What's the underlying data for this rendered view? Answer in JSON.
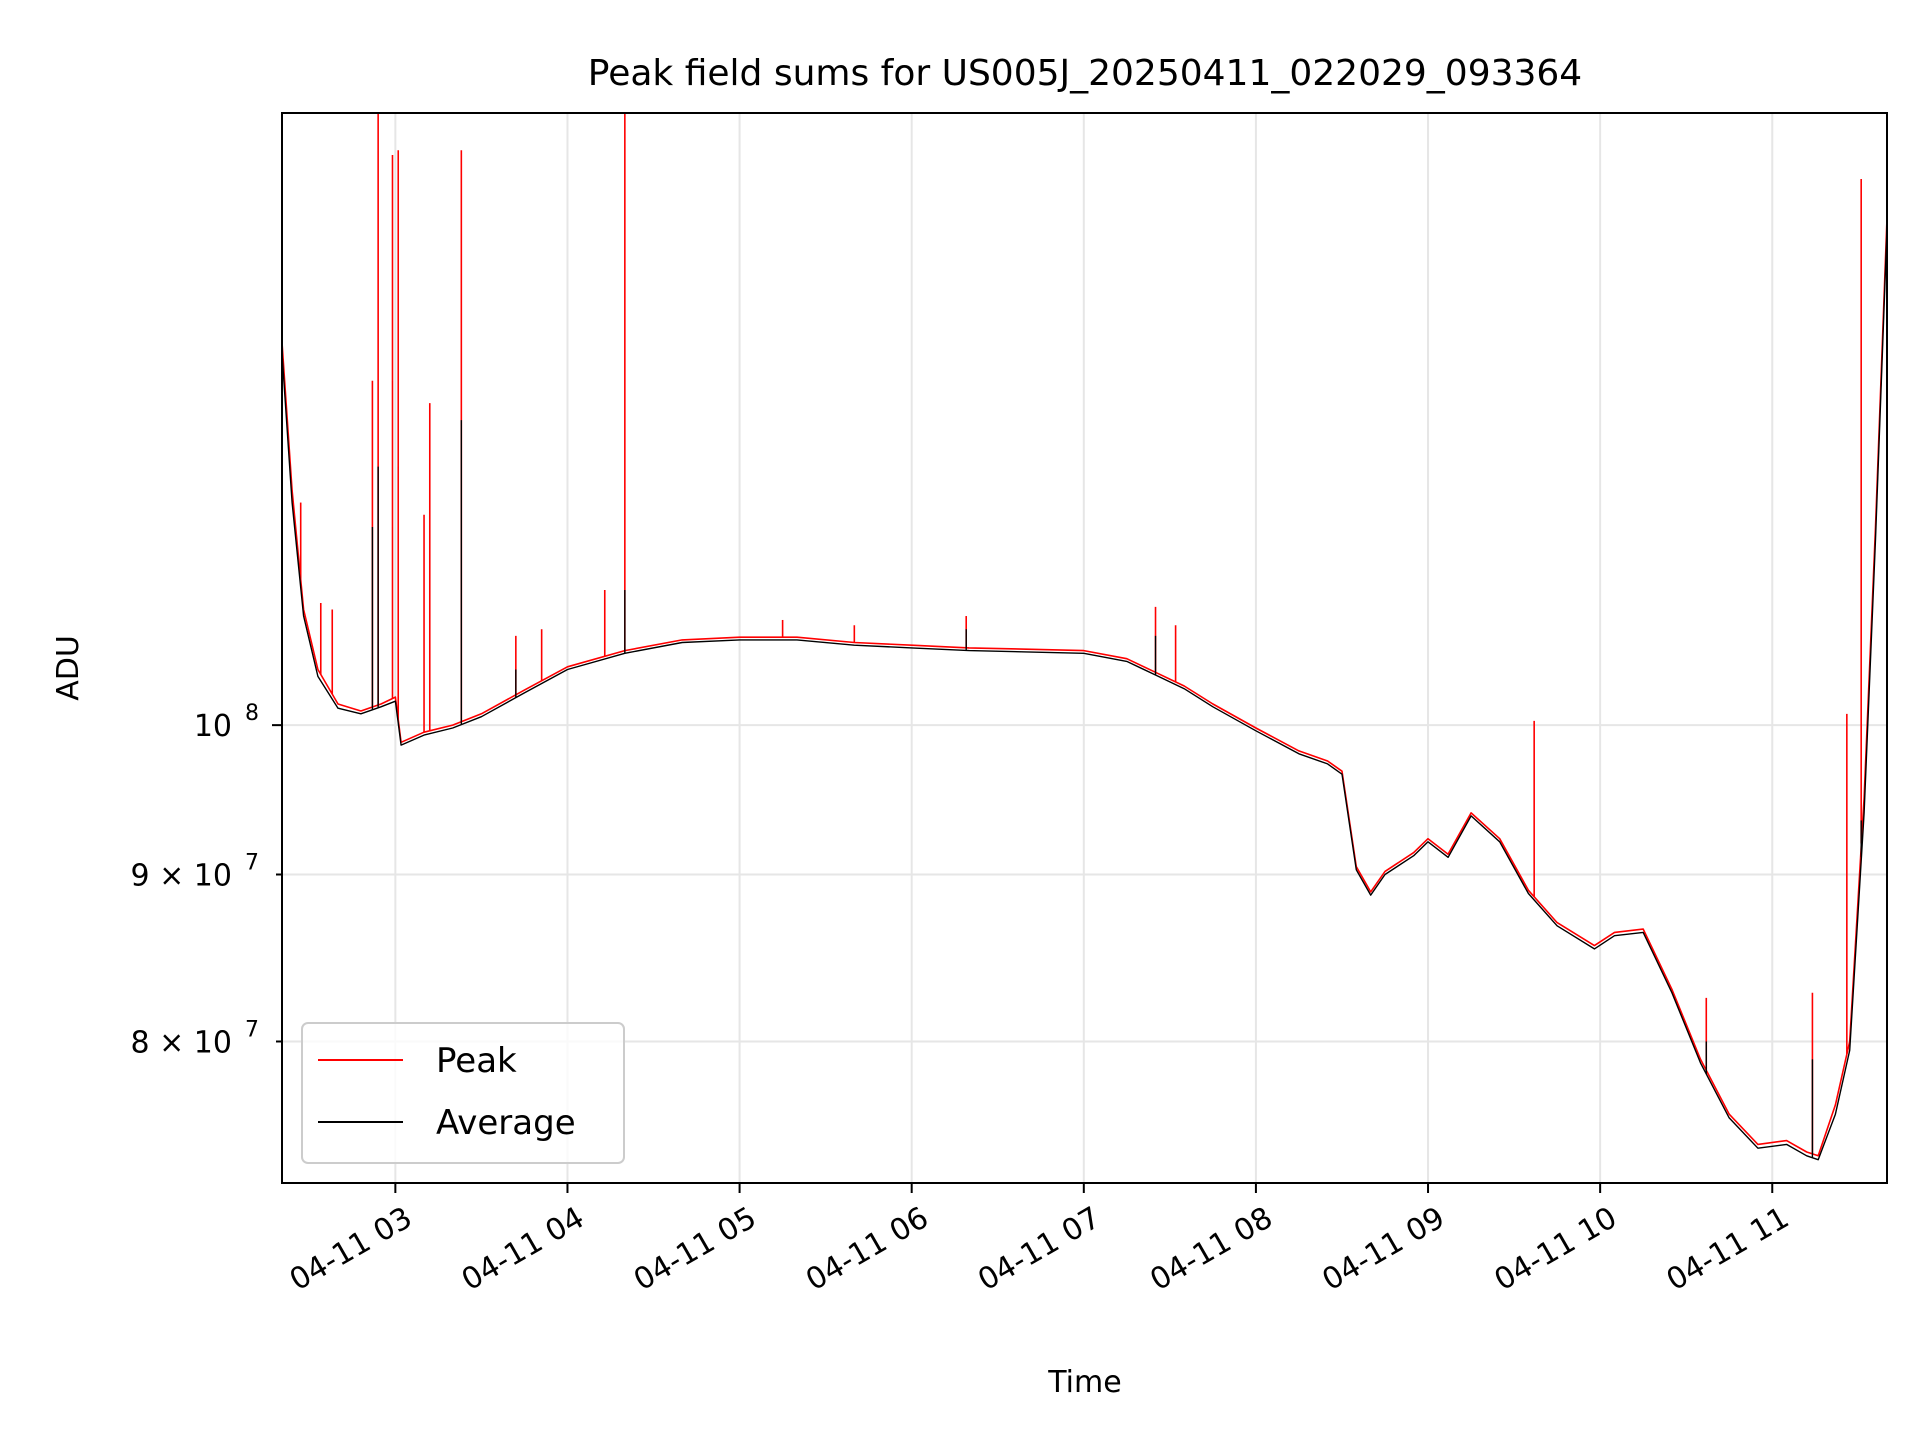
{
  "chart_data": {
    "type": "line",
    "title": "Peak field sums for US005J_20250411_022029_093364",
    "xlabel": "Time",
    "ylabel": "ADU",
    "yscale": "log",
    "xlim": [
      "2025-04-11 02:20:29",
      "2025-04-11 11:40:00"
    ],
    "ylim": [
      72400000,
      154000000
    ],
    "x_ticks": [
      "04-11 03",
      "04-11 04",
      "04-11 05",
      "04-11 06",
      "04-11 07",
      "04-11 08",
      "04-11 09",
      "04-11 10",
      "04-11 11"
    ],
    "y_ticks": [
      {
        "value": 80000000,
        "label": "8 × 10",
        "exp": "7"
      },
      {
        "value": 90000000,
        "label": "9 × 10",
        "exp": "7"
      },
      {
        "value": 100000000,
        "label": "10",
        "exp": "8"
      }
    ],
    "grid": true,
    "legend_position": "lower-left",
    "series": [
      {
        "name": "Peak",
        "color": "#ff0000",
        "points": [
          [
            "2025-04-11 02:20:29",
            131000000
          ],
          [
            "2025-04-11 02:24:00",
            118000000
          ],
          [
            "2025-04-11 02:28:00",
            108500000
          ],
          [
            "2025-04-11 02:33:00",
            104000000
          ],
          [
            "2025-04-11 02:40:00",
            101500000
          ],
          [
            "2025-04-11 02:48:00",
            101000000
          ],
          [
            "2025-04-11 02:55:00",
            101500000
          ],
          [
            "2025-04-11 03:00:00",
            102000000
          ],
          [
            "2025-04-11 03:02:00",
            98800000
          ],
          [
            "2025-04-11 03:10:00",
            99500000
          ],
          [
            "2025-04-11 03:20:00",
            100000000
          ],
          [
            "2025-04-11 03:30:00",
            100800000
          ],
          [
            "2025-04-11 03:45:00",
            102500000
          ],
          [
            "2025-04-11 04:00:00",
            104200000
          ],
          [
            "2025-04-11 04:20:00",
            105400000
          ],
          [
            "2025-04-11 04:40:00",
            106200000
          ],
          [
            "2025-04-11 05:00:00",
            106400000
          ],
          [
            "2025-04-11 05:20:00",
            106400000
          ],
          [
            "2025-04-11 05:40:00",
            106000000
          ],
          [
            "2025-04-11 06:00:00",
            105800000
          ],
          [
            "2025-04-11 06:20:00",
            105600000
          ],
          [
            "2025-04-11 06:40:00",
            105500000
          ],
          [
            "2025-04-11 07:00:00",
            105400000
          ],
          [
            "2025-04-11 07:15:00",
            104800000
          ],
          [
            "2025-04-11 07:25:00",
            103800000
          ],
          [
            "2025-04-11 07:35:00",
            102800000
          ],
          [
            "2025-04-11 07:45:00",
            101500000
          ],
          [
            "2025-04-11 08:00:00",
            99800000
          ],
          [
            "2025-04-11 08:15:00",
            98200000
          ],
          [
            "2025-04-11 08:25:00",
            97500000
          ],
          [
            "2025-04-11 08:30:00",
            96800000
          ],
          [
            "2025-04-11 08:35:00",
            90500000
          ],
          [
            "2025-04-11 08:40:00",
            88900000
          ],
          [
            "2025-04-11 08:45:00",
            90200000
          ],
          [
            "2025-04-11 08:55:00",
            91400000
          ],
          [
            "2025-04-11 09:00:00",
            92300000
          ],
          [
            "2025-04-11 09:07:00",
            91300000
          ],
          [
            "2025-04-11 09:15:00",
            94000000
          ],
          [
            "2025-04-11 09:25:00",
            92300000
          ],
          [
            "2025-04-11 09:35:00",
            89000000
          ],
          [
            "2025-04-11 09:45:00",
            87000000
          ],
          [
            "2025-04-11 09:58:00",
            85600000
          ],
          [
            "2025-04-11 10:05:00",
            86400000
          ],
          [
            "2025-04-11 10:15:00",
            86600000
          ],
          [
            "2025-04-11 10:25:00",
            83000000
          ],
          [
            "2025-04-11 10:35:00",
            79000000
          ],
          [
            "2025-04-11 10:45:00",
            76000000
          ],
          [
            "2025-04-11 10:55:00",
            74400000
          ],
          [
            "2025-04-11 11:05:00",
            74600000
          ],
          [
            "2025-04-11 11:12:00",
            74000000
          ],
          [
            "2025-04-11 11:16:00",
            73800000
          ],
          [
            "2025-04-11 11:22:00",
            76500000
          ],
          [
            "2025-04-11 11:27:00",
            80000000
          ],
          [
            "2025-04-11 11:32:00",
            95000000
          ],
          [
            "2025-04-11 11:36:00",
            115000000
          ],
          [
            "2025-04-11 11:40:00",
            143000000
          ]
        ],
        "spikes": [
          [
            "2025-04-11 02:27:00",
            117000000
          ],
          [
            "2025-04-11 02:34:00",
            109000000
          ],
          [
            "2025-04-11 02:38:00",
            108500000
          ],
          [
            "2025-04-11 02:52:00",
            127500000
          ],
          [
            "2025-04-11 02:54:00",
            155000000
          ],
          [
            "2025-04-11 02:59:00",
            149500000
          ],
          [
            "2025-04-11 03:01:00",
            150000000
          ],
          [
            "2025-04-11 03:10:00",
            116000000
          ],
          [
            "2025-04-11 03:12:00",
            125500000
          ],
          [
            "2025-04-11 03:23:00",
            150000000
          ],
          [
            "2025-04-11 03:42:00",
            106500000
          ],
          [
            "2025-04-11 03:51:00",
            107000000
          ],
          [
            "2025-04-11 04:13:00",
            110000000
          ],
          [
            "2025-04-11 04:20:00",
            154500000
          ],
          [
            "2025-04-11 05:15:00",
            107700000
          ],
          [
            "2025-04-11 05:40:00",
            107300000
          ],
          [
            "2025-04-11 06:19:00",
            108000000
          ],
          [
            "2025-04-11 07:25:00",
            108700000
          ],
          [
            "2025-04-11 07:32:00",
            107300000
          ],
          [
            "2025-04-11 09:37:00",
            100300000
          ],
          [
            "2025-04-11 10:37:00",
            82500000
          ],
          [
            "2025-04-11 11:14:00",
            82800000
          ],
          [
            "2025-04-11 11:26:00",
            100800000
          ],
          [
            "2025-04-11 11:31:00",
            147000000
          ]
        ]
      },
      {
        "name": "Average",
        "color": "#000000",
        "points": [
          [
            "2025-04-11 02:20:29",
            130000000
          ],
          [
            "2025-04-11 02:24:00",
            117000000
          ],
          [
            "2025-04-11 02:28:00",
            108000000
          ],
          [
            "2025-04-11 02:33:00",
            103500000
          ],
          [
            "2025-04-11 02:40:00",
            101200000
          ],
          [
            "2025-04-11 02:48:00",
            100800000
          ],
          [
            "2025-04-11 02:55:00",
            101300000
          ],
          [
            "2025-04-11 03:00:00",
            101700000
          ],
          [
            "2025-04-11 03:02:00",
            98600000
          ],
          [
            "2025-04-11 03:10:00",
            99300000
          ],
          [
            "2025-04-11 03:20:00",
            99800000
          ],
          [
            "2025-04-11 03:30:00",
            100600000
          ],
          [
            "2025-04-11 03:45:00",
            102300000
          ],
          [
            "2025-04-11 04:00:00",
            104000000
          ],
          [
            "2025-04-11 04:20:00",
            105200000
          ],
          [
            "2025-04-11 04:40:00",
            106000000
          ],
          [
            "2025-04-11 05:00:00",
            106200000
          ],
          [
            "2025-04-11 05:20:00",
            106200000
          ],
          [
            "2025-04-11 05:40:00",
            105800000
          ],
          [
            "2025-04-11 06:00:00",
            105600000
          ],
          [
            "2025-04-11 06:20:00",
            105400000
          ],
          [
            "2025-04-11 06:40:00",
            105300000
          ],
          [
            "2025-04-11 07:00:00",
            105200000
          ],
          [
            "2025-04-11 07:15:00",
            104600000
          ],
          [
            "2025-04-11 07:25:00",
            103600000
          ],
          [
            "2025-04-11 07:35:00",
            102600000
          ],
          [
            "2025-04-11 07:45:00",
            101300000
          ],
          [
            "2025-04-11 08:00:00",
            99600000
          ],
          [
            "2025-04-11 08:15:00",
            98000000
          ],
          [
            "2025-04-11 08:25:00",
            97300000
          ],
          [
            "2025-04-11 08:30:00",
            96600000
          ],
          [
            "2025-04-11 08:35:00",
            90300000
          ],
          [
            "2025-04-11 08:40:00",
            88700000
          ],
          [
            "2025-04-11 08:45:00",
            90000000
          ],
          [
            "2025-04-11 08:55:00",
            91200000
          ],
          [
            "2025-04-11 09:00:00",
            92100000
          ],
          [
            "2025-04-11 09:07:00",
            91100000
          ],
          [
            "2025-04-11 09:15:00",
            93800000
          ],
          [
            "2025-04-11 09:25:00",
            92100000
          ],
          [
            "2025-04-11 09:35:00",
            88800000
          ],
          [
            "2025-04-11 09:45:00",
            86800000
          ],
          [
            "2025-04-11 09:58:00",
            85400000
          ],
          [
            "2025-04-11 10:05:00",
            86200000
          ],
          [
            "2025-04-11 10:15:00",
            86400000
          ],
          [
            "2025-04-11 10:25:00",
            82800000
          ],
          [
            "2025-04-11 10:35:00",
            78800000
          ],
          [
            "2025-04-11 10:45:00",
            75800000
          ],
          [
            "2025-04-11 10:55:00",
            74200000
          ],
          [
            "2025-04-11 11:05:00",
            74400000
          ],
          [
            "2025-04-11 11:12:00",
            73800000
          ],
          [
            "2025-04-11 11:16:00",
            73600000
          ],
          [
            "2025-04-11 11:22:00",
            76000000
          ],
          [
            "2025-04-11 11:27:00",
            79500000
          ],
          [
            "2025-04-11 11:32:00",
            94000000
          ],
          [
            "2025-04-11 11:36:00",
            114000000
          ],
          [
            "2025-04-11 11:40:00",
            142000000
          ]
        ],
        "spikes": [
          [
            "2025-04-11 02:52:00",
            115000000
          ],
          [
            "2025-04-11 02:54:00",
            120000000
          ],
          [
            "2025-04-11 03:23:00",
            124000000
          ],
          [
            "2025-04-11 03:42:00",
            104000000
          ],
          [
            "2025-04-11 04:20:00",
            110000000
          ],
          [
            "2025-04-11 06:19:00",
            107000000
          ],
          [
            "2025-04-11 07:25:00",
            106500000
          ],
          [
            "2025-04-11 10:37:00",
            80000000
          ],
          [
            "2025-04-11 11:14:00",
            79000000
          ],
          [
            "2025-04-11 11:31:00",
            93500000
          ]
        ]
      }
    ]
  }
}
